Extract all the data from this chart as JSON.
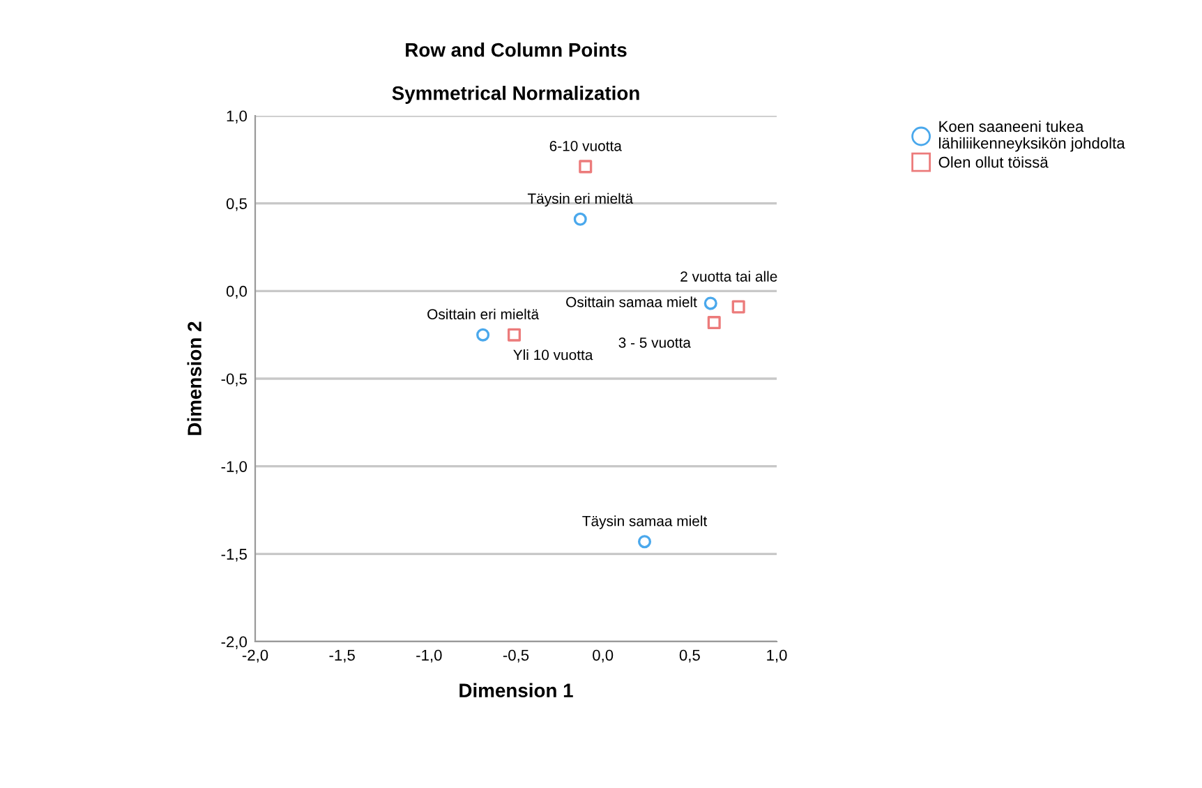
{
  "chart_data": {
    "type": "scatter",
    "title": "Row and Column Points",
    "subtitle": "Symmetrical Normalization",
    "xlabel": "Dimension 1",
    "ylabel": "Dimension 2",
    "series": [
      {
        "name": "Koen saaneeni tukea lähiliikenneyksikön johdolta",
        "color": "#4aa8ec",
        "marker": "circle",
        "x": [
          -0.13,
          -0.69,
          0.62,
          0.24
        ],
        "values": [
          0.41,
          -0.25,
          -0.07,
          -1.43
        ]
      },
      {
        "name": "Olen ollut töissä",
        "color": "#ec7b7b",
        "marker": "square",
        "x": [
          -0.1,
          -0.51,
          0.78,
          0.64
        ],
        "values": [
          0.71,
          -0.25,
          -0.09,
          -0.18
        ]
      }
    ],
    "annotations": [
      {
        "text": "Täysin eri mieltä",
        "x": -0.13,
        "y": 0.41
      },
      {
        "text": "Osittain eri mieltä",
        "x": -0.69,
        "y": -0.25
      },
      {
        "text": "Osittain samaa mielt",
        "x": 0.62,
        "y": -0.07
      },
      {
        "text": "Täysin samaa mielt",
        "x": 0.24,
        "y": -1.43
      },
      {
        "text": "6-10 vuotta",
        "x": -0.1,
        "y": 0.71
      },
      {
        "text": "Yli 10 vuotta",
        "x": -0.51,
        "y": -0.25
      },
      {
        "text": "2 vuotta tai alle",
        "x": 0.78,
        "y": -0.09
      },
      {
        "text": "3 - 5 vuotta",
        "x": 0.64,
        "y": -0.18
      }
    ],
    "xlim": [
      -2.0,
      1.0
    ],
    "ylim": [
      -2.0,
      1.0
    ],
    "xticks": [
      {
        "value": -2.0,
        "label": "-2,0"
      },
      {
        "value": -1.5,
        "label": "-1,5"
      },
      {
        "value": -1.0,
        "label": "-1,0"
      },
      {
        "value": -0.5,
        "label": "-0,5"
      },
      {
        "value": 0.0,
        "label": "0,0"
      },
      {
        "value": 0.5,
        "label": "0,5"
      },
      {
        "value": 1.0,
        "label": "1,0"
      }
    ],
    "yticks": [
      {
        "value": -2.0,
        "label": "-2,0"
      },
      {
        "value": -1.5,
        "label": "-1,5"
      },
      {
        "value": -1.0,
        "label": "-1,0"
      },
      {
        "value": -0.5,
        "label": "-0,5"
      },
      {
        "value": 0.0,
        "label": "0,0"
      },
      {
        "value": 0.5,
        "label": "0,5"
      },
      {
        "value": 1.0,
        "label": "1,0"
      }
    ],
    "grid": "y",
    "legend": "top right"
  }
}
